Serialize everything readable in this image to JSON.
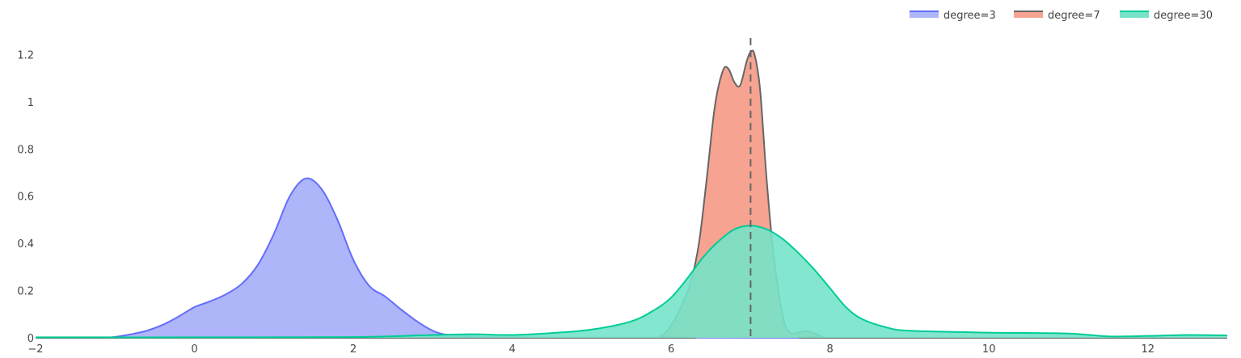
{
  "chart_data": {
    "type": "area",
    "xlim": [
      -2,
      13
    ],
    "ylim": [
      0,
      1.27
    ],
    "x_ticks": [
      "−2",
      "0",
      "2",
      "4",
      "6",
      "8",
      "10",
      "12"
    ],
    "x_tick_values": [
      -2,
      0,
      2,
      4,
      6,
      8,
      10,
      12
    ],
    "y_ticks": [
      "0",
      "0.2",
      "0.4",
      "0.6",
      "0.8",
      "1",
      "1.2"
    ],
    "y_tick_values": [
      0,
      0.2,
      0.4,
      0.6,
      0.8,
      1,
      1.2
    ],
    "grid": false,
    "legend_placement": "top-right",
    "reference_line": {
      "x": 7,
      "style": "dashed",
      "color": "#666666"
    },
    "series": [
      {
        "name": "degree=3",
        "fill": "#AEB5F8",
        "stroke": "#636EFA",
        "points": [
          [
            -2,
            0
          ],
          [
            -1.2,
            0
          ],
          [
            -1,
            0.004
          ],
          [
            -0.8,
            0.015
          ],
          [
            -0.6,
            0.03
          ],
          [
            -0.4,
            0.055
          ],
          [
            -0.2,
            0.09
          ],
          [
            0,
            0.13
          ],
          [
            0.2,
            0.155
          ],
          [
            0.4,
            0.185
          ],
          [
            0.6,
            0.23
          ],
          [
            0.8,
            0.31
          ],
          [
            1,
            0.44
          ],
          [
            1.2,
            0.6
          ],
          [
            1.4,
            0.675
          ],
          [
            1.6,
            0.63
          ],
          [
            1.8,
            0.5
          ],
          [
            2,
            0.33
          ],
          [
            2.2,
            0.22
          ],
          [
            2.4,
            0.175
          ],
          [
            2.6,
            0.12
          ],
          [
            2.8,
            0.07
          ],
          [
            3,
            0.03
          ],
          [
            3.2,
            0.012
          ],
          [
            3.6,
            0.004
          ],
          [
            4,
            0.002
          ],
          [
            5,
            0.001
          ],
          [
            8,
            0
          ],
          [
            13,
            0
          ]
        ]
      },
      {
        "name": "degree=7",
        "fill": "#F6A391",
        "stroke": "#666666",
        "points": [
          [
            -2,
            0
          ],
          [
            5.7,
            0
          ],
          [
            5.85,
            0.005
          ],
          [
            5.95,
            0.03
          ],
          [
            6.05,
            0.08
          ],
          [
            6.15,
            0.15
          ],
          [
            6.25,
            0.24
          ],
          [
            6.35,
            0.4
          ],
          [
            6.45,
            0.68
          ],
          [
            6.55,
            0.98
          ],
          [
            6.65,
            1.13
          ],
          [
            6.72,
            1.14
          ],
          [
            6.8,
            1.08
          ],
          [
            6.87,
            1.07
          ],
          [
            6.95,
            1.17
          ],
          [
            7.0,
            1.21
          ],
          [
            7.05,
            1.2
          ],
          [
            7.12,
            1.05
          ],
          [
            7.2,
            0.68
          ],
          [
            7.28,
            0.38
          ],
          [
            7.35,
            0.2
          ],
          [
            7.42,
            0.07
          ],
          [
            7.5,
            0.02
          ],
          [
            7.6,
            0.022
          ],
          [
            7.7,
            0.028
          ],
          [
            7.8,
            0.02
          ],
          [
            7.9,
            0.005
          ],
          [
            8.0,
            0
          ],
          [
            13,
            0
          ]
        ]
      },
      {
        "name": "degree=30",
        "fill": "#76E3C9",
        "stroke": "#00CC96",
        "points": [
          [
            -2,
            0.002
          ],
          [
            0,
            0.002
          ],
          [
            2,
            0.003
          ],
          [
            3,
            0.012
          ],
          [
            3.5,
            0.015
          ],
          [
            4,
            0.012
          ],
          [
            4.5,
            0.02
          ],
          [
            5,
            0.035
          ],
          [
            5.5,
            0.07
          ],
          [
            5.8,
            0.12
          ],
          [
            6,
            0.17
          ],
          [
            6.2,
            0.25
          ],
          [
            6.4,
            0.34
          ],
          [
            6.6,
            0.41
          ],
          [
            6.8,
            0.46
          ],
          [
            7,
            0.475
          ],
          [
            7.2,
            0.46
          ],
          [
            7.4,
            0.42
          ],
          [
            7.6,
            0.36
          ],
          [
            7.8,
            0.29
          ],
          [
            8,
            0.21
          ],
          [
            8.2,
            0.13
          ],
          [
            8.4,
            0.08
          ],
          [
            8.7,
            0.045
          ],
          [
            9,
            0.03
          ],
          [
            10,
            0.022
          ],
          [
            11,
            0.018
          ],
          [
            11.5,
            0.006
          ],
          [
            12,
            0.008
          ],
          [
            12.5,
            0.012
          ],
          [
            13,
            0.01
          ]
        ]
      }
    ]
  }
}
